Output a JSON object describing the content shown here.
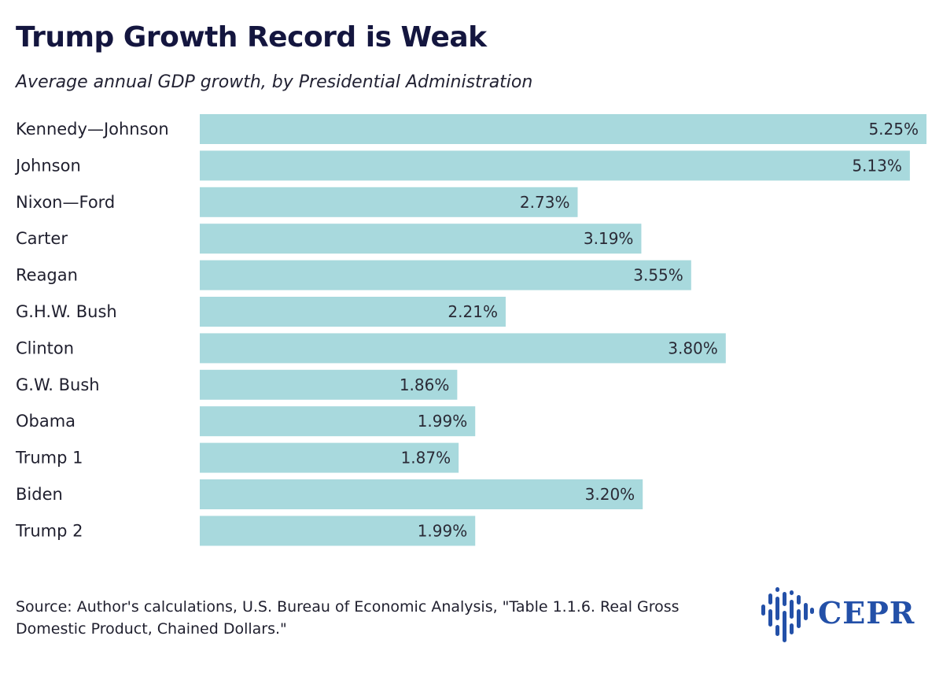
{
  "header": {
    "title": "Trump Growth Record is Weak",
    "subtitle": "Average annual GDP growth, by Presidential Administration"
  },
  "chart_data": {
    "type": "bar",
    "orientation": "horizontal",
    "title": "Trump Growth Record is Weak",
    "subtitle": "Average annual GDP growth, by Presidential Administration",
    "categories": [
      "Kennedy—Johnson",
      "Johnson",
      "Nixon—Ford",
      "Carter",
      "Reagan",
      "G.H.W. Bush",
      "Clinton",
      "G.W. Bush",
      "Obama",
      "Trump 1",
      "Biden",
      "Trump 2"
    ],
    "values": [
      5.25,
      5.13,
      2.73,
      3.19,
      3.55,
      2.21,
      3.8,
      1.86,
      1.99,
      1.87,
      3.2,
      1.99
    ],
    "value_labels": [
      "5.25%",
      "5.13%",
      "2.73%",
      "3.19%",
      "3.55%",
      "2.21%",
      "3.80%",
      "1.86%",
      "1.99%",
      "1.87%",
      "3.20%",
      "1.99%"
    ],
    "unit": "%",
    "xlim": [
      0,
      5.25
    ],
    "grid": false,
    "legend": "none",
    "bar_color": "#a8d9dd"
  },
  "footer": {
    "source": "Source: Author's calculations, U.S. Bureau of Economic Analysis, \"Table 1.1.6. Real Gross Domestic Product, Chained Dollars.\"",
    "logo_text": "CEPR",
    "logo_color": "#2350a8"
  }
}
